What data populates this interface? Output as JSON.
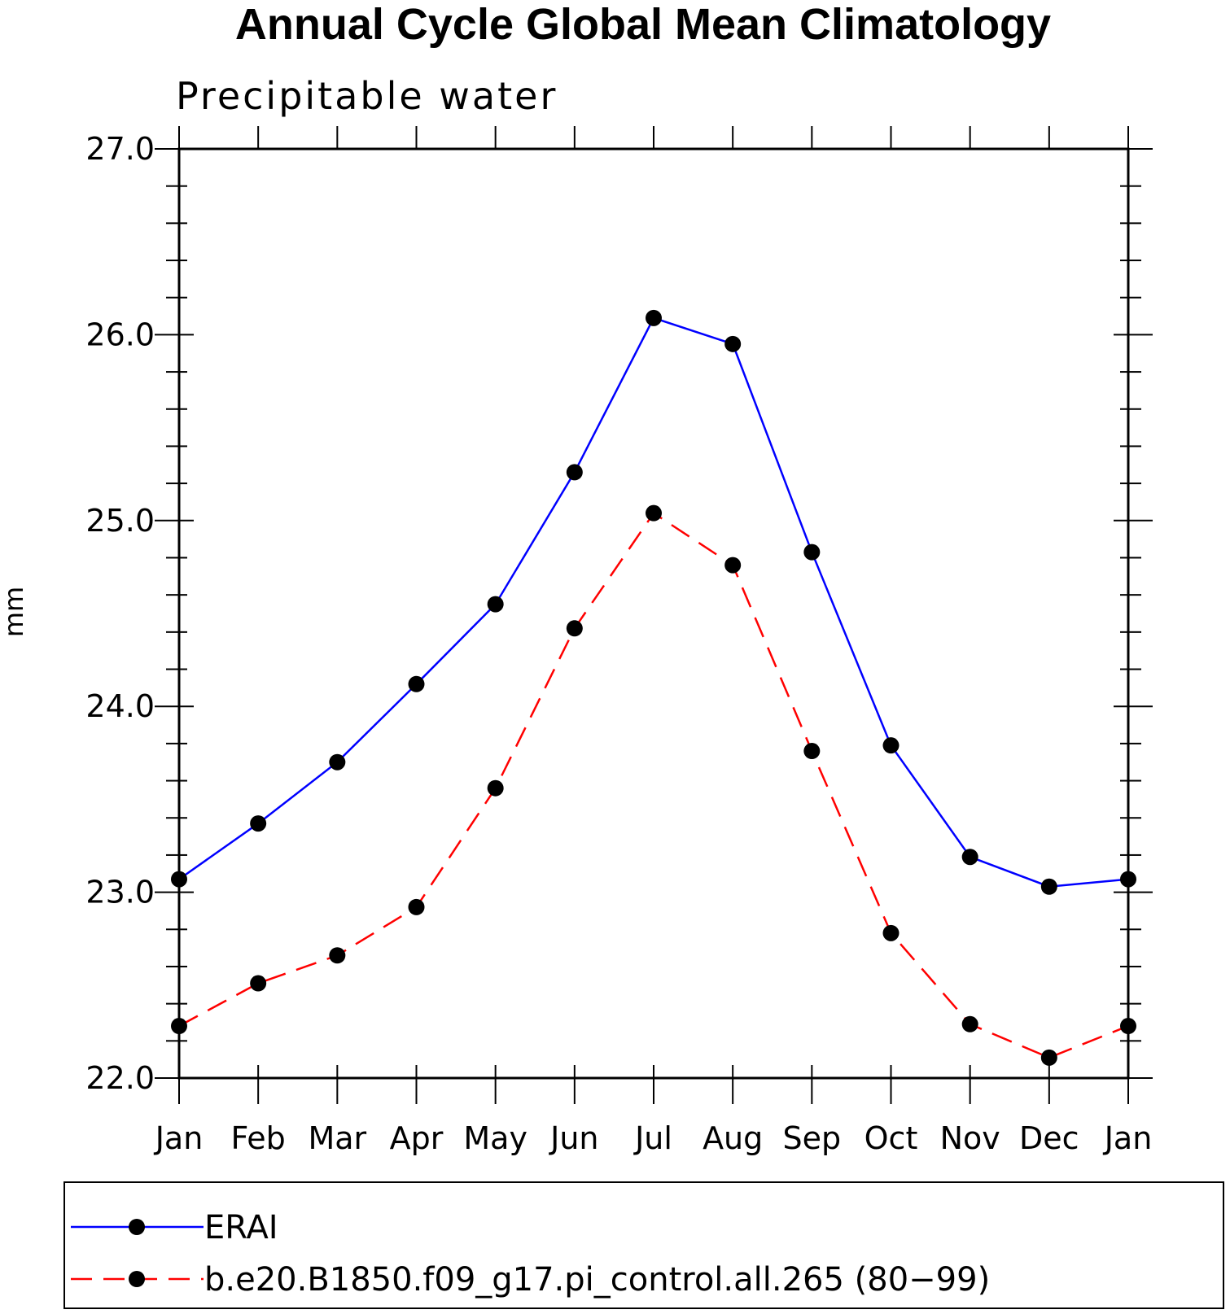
{
  "chart_data": {
    "type": "line",
    "title": "Annual Cycle Global Mean Climatology",
    "subtitle": "Precipitable water",
    "ylabel": "mm",
    "xlabel": "",
    "categories": [
      "Jan",
      "Feb",
      "Mar",
      "Apr",
      "May",
      "Jun",
      "Jul",
      "Aug",
      "Sep",
      "Oct",
      "Nov",
      "Dec",
      "Jan"
    ],
    "ylim": [
      22.0,
      27.0
    ],
    "yticks": [
      "22.0",
      "23.0",
      "24.0",
      "25.0",
      "26.0",
      "27.0"
    ],
    "grid": false,
    "legend_position": "bottom",
    "series": [
      {
        "name": "ERAI",
        "color": "#0000ff",
        "line_style": "solid",
        "marker": "filled-circle",
        "values": [
          23.07,
          23.37,
          23.7,
          24.12,
          24.55,
          25.26,
          26.09,
          25.95,
          24.83,
          23.79,
          23.19,
          23.03,
          23.07
        ]
      },
      {
        "name": "b.e20.B1850.f09_g17.pi_control.all.265 (80−99)",
        "color": "#ff0000",
        "line_style": "dashed",
        "marker": "filled-circle",
        "values": [
          22.28,
          22.51,
          22.66,
          22.92,
          23.56,
          24.42,
          25.04,
          24.76,
          23.76,
          22.78,
          22.29,
          22.11,
          22.28
        ]
      }
    ]
  }
}
